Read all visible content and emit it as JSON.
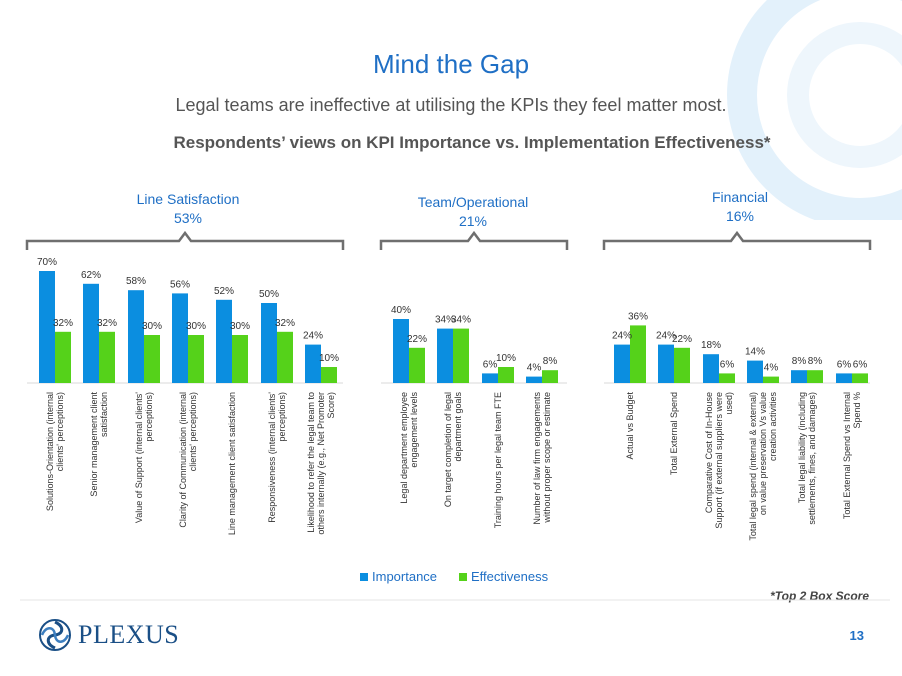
{
  "title": "Mind the Gap",
  "subtitle": "Legal teams are ineffective at utilising the KPIs they feel matter most.",
  "heading": "Respondents’ views on KPI Importance vs. Implementation Effectiveness*",
  "groups": [
    {
      "name": "Line Satisfaction",
      "pct": "53%"
    },
    {
      "name": "Team/Operational",
      "pct": "21%"
    },
    {
      "name": "Financial",
      "pct": "16%"
    }
  ],
  "legend": {
    "importance": "Importance",
    "effectiveness": "Effectiveness"
  },
  "footnote": "*Top 2 Box Score",
  "logo": "PLEXUS",
  "page_number": "13",
  "colors": {
    "importance": "#0b8ee0",
    "effectiveness": "#55d21a",
    "accent": "#1f6fc5",
    "brace": "#6f6f6f"
  },
  "chart_data": {
    "type": "bar",
    "categories": [
      "Solutions-Orientation (internal clients' perceptions)",
      "Senior management client satisfaction",
      "Value of Support (internal clients' perceptions)",
      "Clarity of Communication (internal clients' perceptions)",
      "Line management client satisfaction",
      "Responsiveness (internal clients' perceptions)",
      "Likelihood to refer the legal team to others internally (e.g., Net Promoter Score)",
      "Legal department employee engagement levels",
      "On target completion of legal department goals",
      "Training hours per legal team FTE",
      "Number of law firm engagements without proper scope or estimate",
      "Actual vs Budget",
      "Total External Spend",
      "Comparative Cost of In-House Support (if external suppliers were used)",
      "Total legal spend (internal & external) on value preservation Vs value creation activities",
      "Total legal liability (including settlements, fines, and damages)",
      "Total External Spend vs Internal Spend %"
    ],
    "series": [
      {
        "name": "Importance",
        "values": [
          70,
          62,
          58,
          56,
          52,
          50,
          24,
          40,
          34,
          6,
          4,
          24,
          24,
          18,
          14,
          8,
          6
        ]
      },
      {
        "name": "Effectiveness",
        "values": [
          32,
          32,
          30,
          30,
          30,
          32,
          10,
          22,
          34,
          10,
          8,
          36,
          22,
          6,
          4,
          8,
          6
        ]
      }
    ],
    "value_labels": {
      "Importance": [
        "70%",
        "62%",
        "58%",
        "56%",
        "52%",
        "50%",
        "24%",
        "40%",
        "34%",
        "6%",
        "4%",
        "24%",
        "24%",
        "18%",
        "14%",
        "8%",
        "6%"
      ],
      "Effectiveness": [
        "32%",
        "32%",
        "30%",
        "30%",
        "30%",
        "32%",
        "10%",
        "22%",
        "34%",
        "10%",
        "8%",
        "36%",
        "22%",
        "6%",
        "4%",
        "8%",
        "6%"
      ]
    },
    "category_labels": [
      [
        "Solutions-Orientation (internal",
        "clients' perceptions)"
      ],
      [
        "Senior management client",
        "satisfaction"
      ],
      [
        "Value of Support (internal clients'",
        "perceptions)"
      ],
      [
        "Clarity of Communication (internal",
        "clients' perceptions)"
      ],
      [
        "Line management client satisfaction"
      ],
      [
        "Responsiveness (internal clients'",
        "perceptions)"
      ],
      [
        "Likelihood to refer the legal team to",
        "others internally (e.g., Net Promoter",
        "Score)"
      ],
      [
        "Legal department employee",
        "engagement levels"
      ],
      [
        "On target completion of legal",
        "department goals"
      ],
      [
        "Training hours per legal team FTE"
      ],
      [
        "Number of law firm engagements",
        "without proper scope or estimate"
      ],
      [
        "Actual vs Budget"
      ],
      [
        "Total External Spend"
      ],
      [
        "Comparative Cost of In-House",
        "Support (if external suppliers were",
        "used)"
      ],
      [
        "Total legal spend (internal & external)",
        "on value preservation Vs value",
        "creation activities"
      ],
      [
        "Total legal liability (including",
        "settlements, fines, and damages)"
      ],
      [
        "Total External Spend vs Internal",
        "Spend %"
      ]
    ],
    "ylim": [
      0,
      70
    ],
    "grid": false,
    "legend_position": "bottom"
  }
}
